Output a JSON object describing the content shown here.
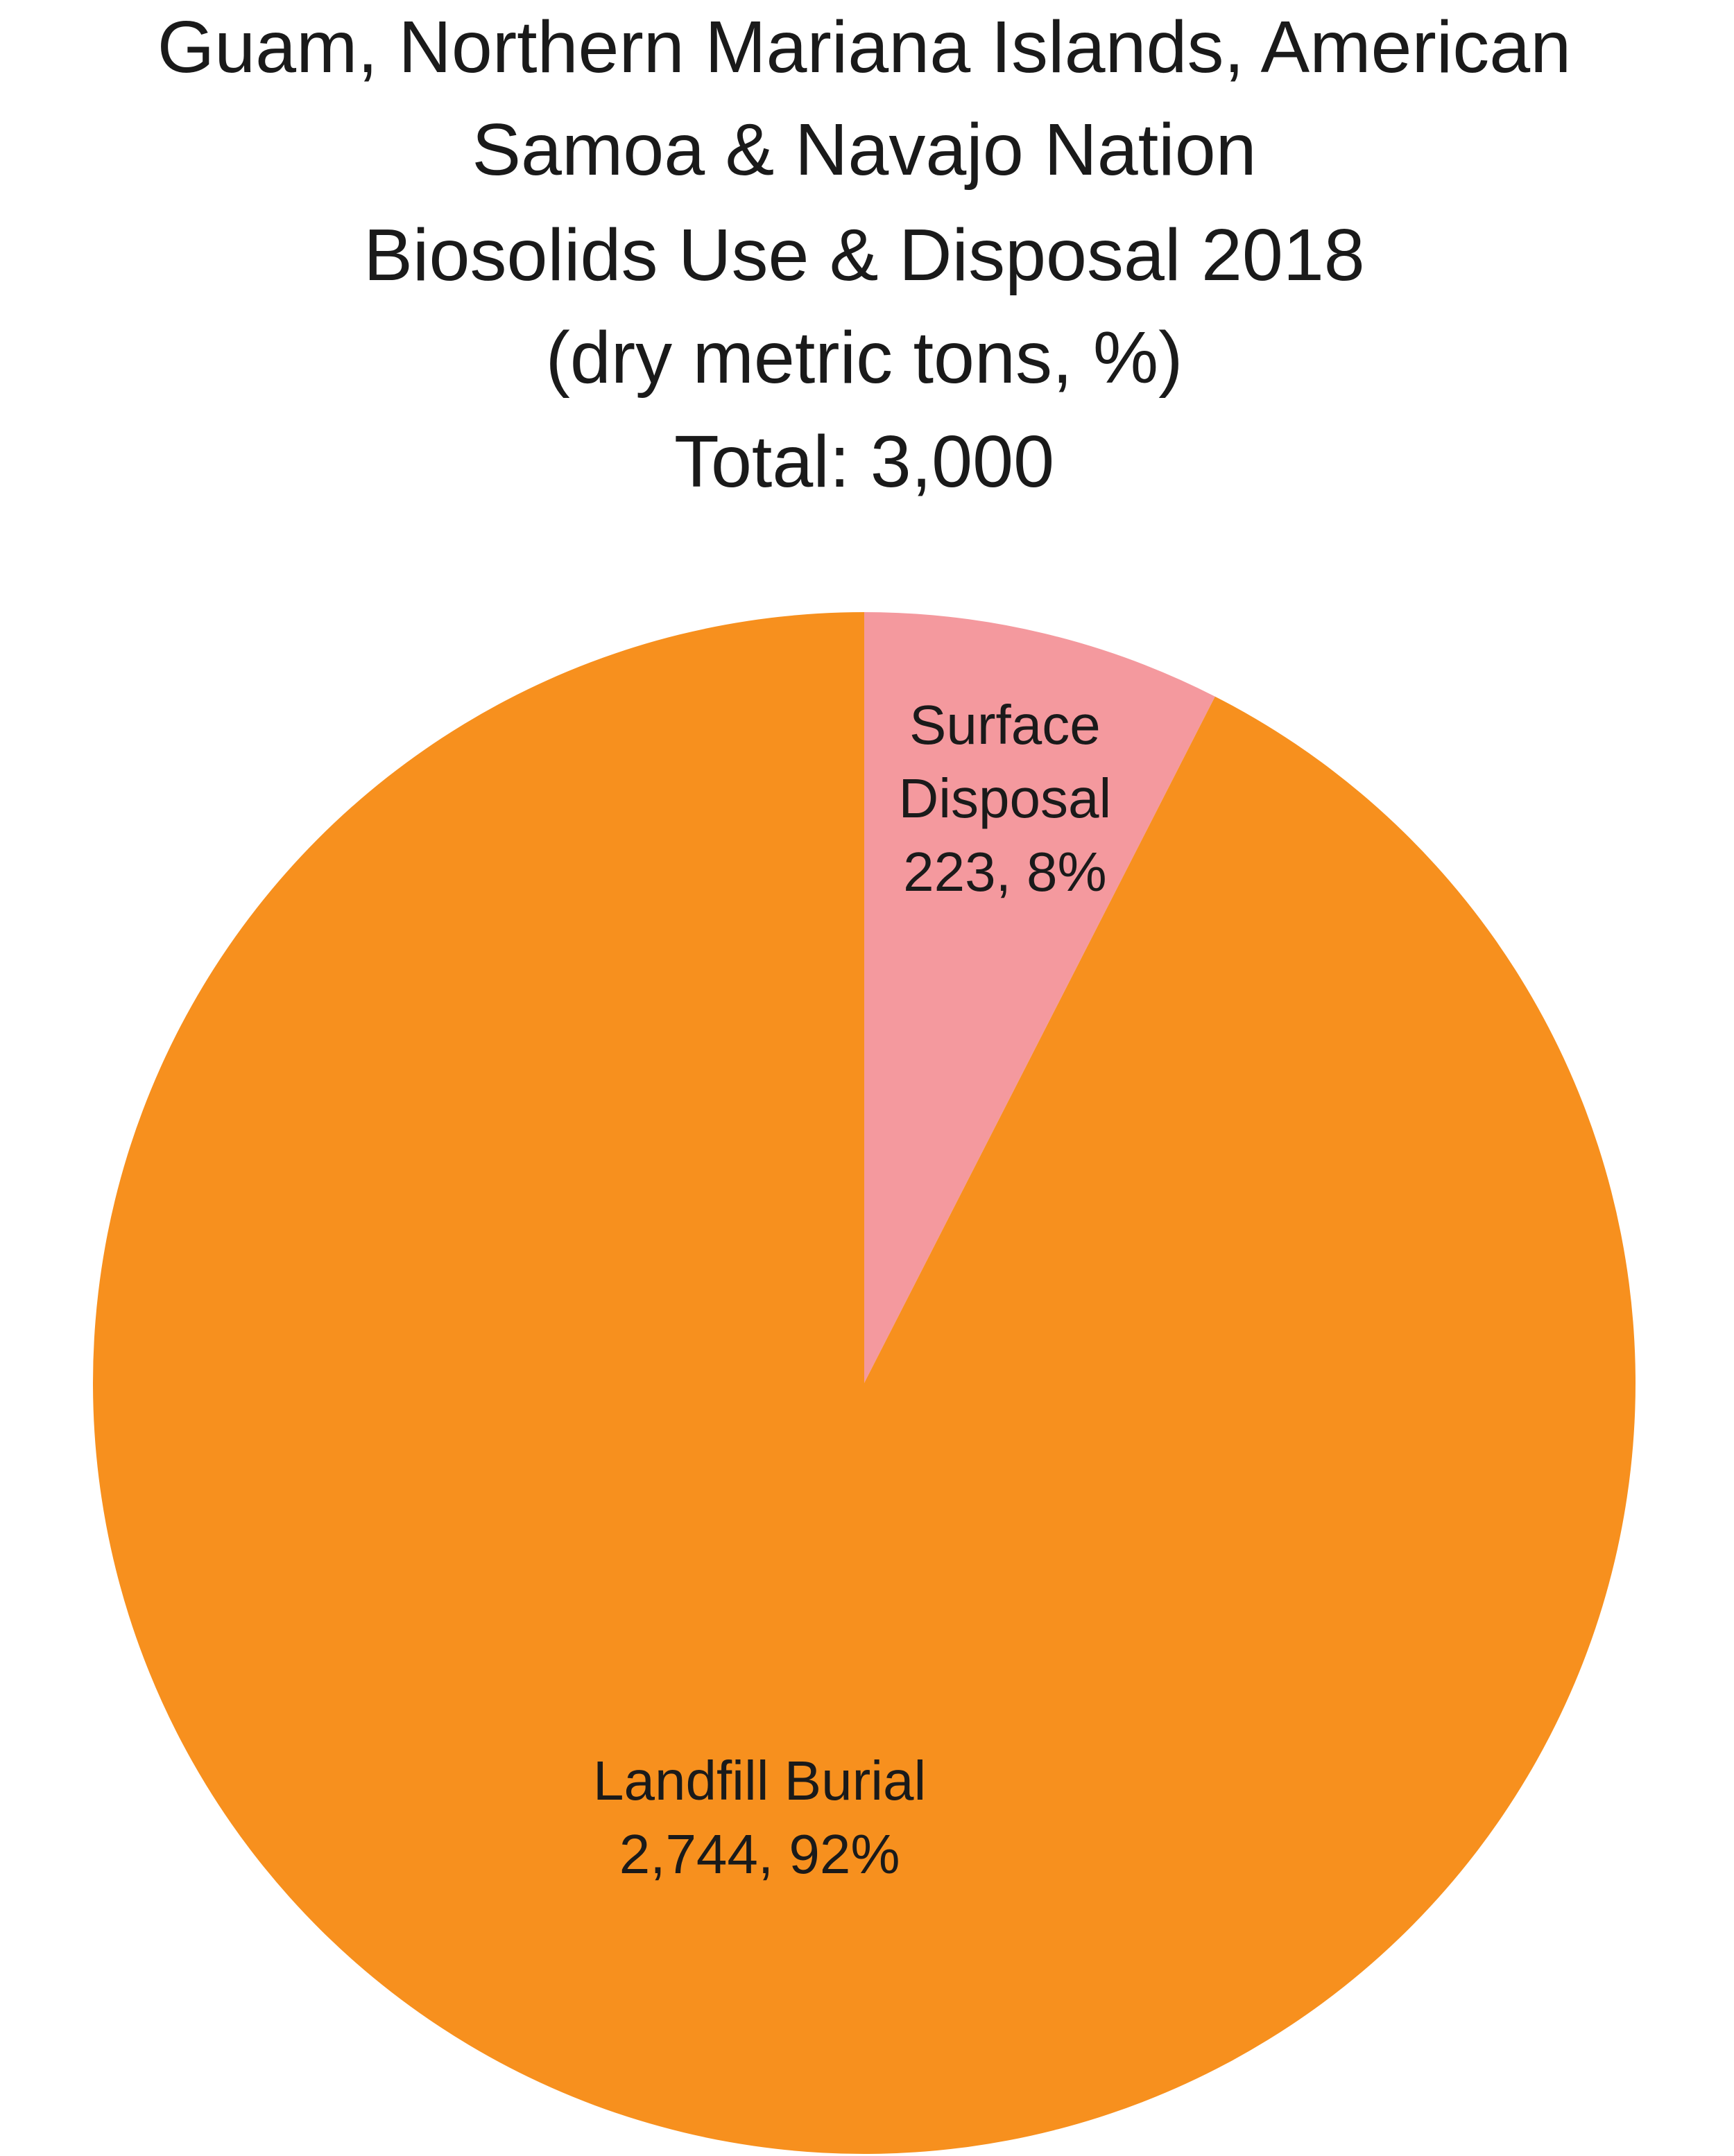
{
  "chart_data": {
    "type": "pie",
    "title": [
      "Guam, Northern Mariana Islands, American",
      "Samoa & Navajo Nation",
      "Biosolids Use & Disposal 2018",
      "(dry metric tons, %)",
      "Total: 3,000"
    ],
    "categories": [
      "Surface Disposal",
      "Landfill Burial"
    ],
    "values": [
      223,
      2744
    ],
    "value_labels": [
      "223, 8%",
      "2,744, 92%"
    ],
    "colors": [
      "#f4999e",
      "#f7901e"
    ]
  }
}
